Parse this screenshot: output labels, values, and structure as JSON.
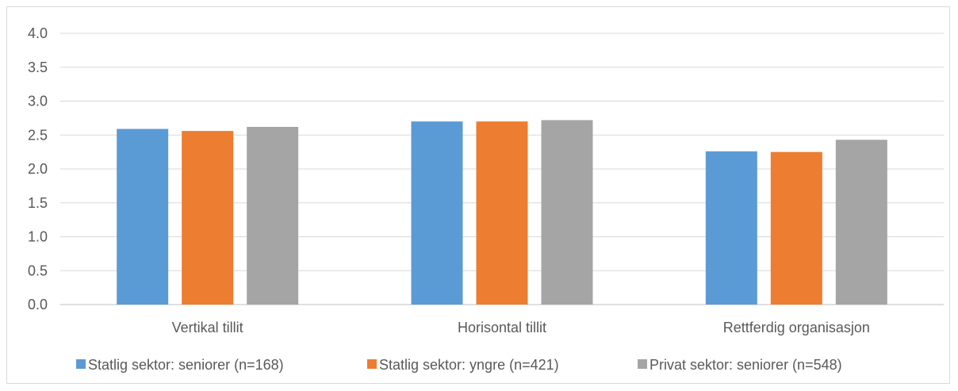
{
  "chart_data": {
    "type": "bar",
    "title": "",
    "xlabel": "",
    "ylabel": "",
    "categories": [
      "Vertikal tillit",
      "Horisontal tillit",
      "Rettferdig organisasjon"
    ],
    "ylim": [
      0,
      4.0
    ],
    "yticks": [
      "0.0",
      "0.5",
      "1.0",
      "1.5",
      "2.0",
      "2.5",
      "3.0",
      "3.5",
      "4.0"
    ],
    "grid": true,
    "legend": "bottom",
    "series": [
      {
        "name": "Statlig sektor: seniorer (n=168)",
        "color": "#5b9bd5",
        "values": [
          2.59,
          2.7,
          2.26
        ]
      },
      {
        "name": "Statlig sektor: yngre (n=421)",
        "color": "#ed7d31",
        "values": [
          2.56,
          2.7,
          2.25
        ]
      },
      {
        "name": "Privat sektor: seniorer (n=548)",
        "color": "#a5a5a5",
        "values": [
          2.62,
          2.72,
          2.43
        ]
      }
    ]
  }
}
